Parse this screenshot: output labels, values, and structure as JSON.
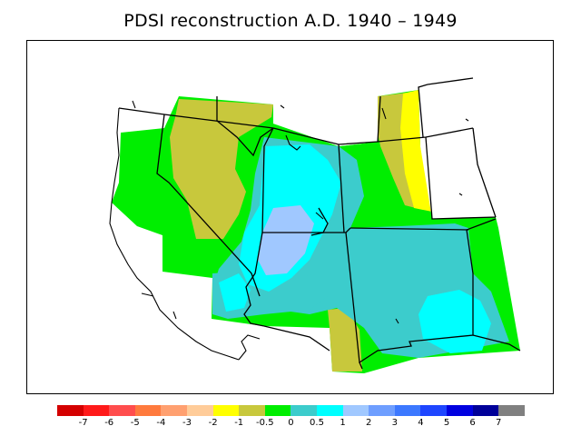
{
  "title": "PDSI reconstruction A.D. 1940 – 1949",
  "legend": {
    "colors": [
      "#d40000",
      "#ff1a1a",
      "#ff4d4d",
      "#ff7a3d",
      "#ffa070",
      "#ffcc99",
      "#ffff00",
      "#c8c83c",
      "#00ee00",
      "#3ccccc",
      "#00ffff",
      "#a0c8ff",
      "#6e9eff",
      "#3c78ff",
      "#1e46ff",
      "#0000e0",
      "#000099",
      "#808080"
    ],
    "labels": [
      "-7",
      "-6",
      "-5",
      "-4",
      "-3",
      "-2",
      "-1",
      "-0.5",
      "0",
      "0.5",
      "1",
      "2",
      "3",
      "4",
      "5",
      "6",
      "7"
    ]
  },
  "map": {
    "colors": {
      "green": "#00ee00",
      "olive": "#c8c83c",
      "teal": "#3ccccc",
      "cyan": "#00ffff",
      "lightblue": "#a0c8ff",
      "yellow": "#ffff00",
      "border": "#000000"
    }
  }
}
